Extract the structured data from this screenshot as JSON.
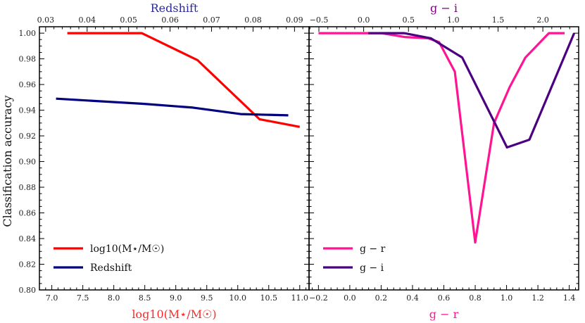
{
  "chart_data": [
    {
      "type": "line",
      "panel": "left",
      "ylabel": "Classification accuracy",
      "ylim": [
        0.8,
        1.005
      ],
      "yticks": [
        0.8,
        0.82,
        0.84,
        0.86,
        0.88,
        0.9,
        0.92,
        0.94,
        0.96,
        0.98,
        1.0
      ],
      "ytick_labels": [
        "0.80",
        "0.82",
        "0.84",
        "0.86",
        "0.88",
        "0.90",
        "0.92",
        "0.94",
        "0.96",
        "0.98",
        "1.00"
      ],
      "bottom_axis": {
        "label": "log10(M⋆/M☉)",
        "label_color": "#ff2a2a",
        "lim": [
          6.8,
          11.15
        ],
        "ticks": [
          7.0,
          7.5,
          8.0,
          8.5,
          9.0,
          9.5,
          10.0,
          10.5,
          11.0
        ],
        "tick_labels": [
          "7.0",
          "7.5",
          "8.0",
          "8.5",
          "9.0",
          "9.5",
          "10.0",
          "10.5",
          "11.0"
        ]
      },
      "top_axis": {
        "label": "Redshift",
        "label_color": "#2a2a9a",
        "lim": [
          0.0285,
          0.0935
        ],
        "ticks": [
          0.03,
          0.04,
          0.05,
          0.06,
          0.07,
          0.08,
          0.09
        ],
        "tick_labels": [
          "0.03",
          "0.04",
          "0.05",
          "0.06",
          "0.07",
          "0.08",
          "0.09"
        ]
      },
      "series": [
        {
          "name": "log10(M⋆/M☉)",
          "axis": "bottom",
          "color": "#ff0000",
          "x": [
            7.25,
            8.45,
            9.35,
            10.35,
            11.0
          ],
          "y": [
            1.0,
            1.0,
            0.979,
            0.933,
            0.927
          ]
        },
        {
          "name": "Redshift",
          "axis": "top",
          "color": "#00007f",
          "x": [
            0.0325,
            0.0535,
            0.0655,
            0.077,
            0.0885
          ],
          "y": [
            0.949,
            0.945,
            0.942,
            0.937,
            0.936
          ]
        }
      ],
      "legend": {
        "position": "lower-left"
      }
    },
    {
      "type": "line",
      "panel": "right",
      "ylim": [
        0.8,
        1.005
      ],
      "bottom_axis": {
        "label": "g − r",
        "label_color": "#ff1493",
        "lim": [
          -0.26,
          1.46
        ],
        "ticks": [
          -0.2,
          0.0,
          0.2,
          0.4,
          0.6,
          0.8,
          1.0,
          1.2,
          1.4
        ],
        "tick_labels": [
          "−0.2",
          "0.0",
          "0.2",
          "0.4",
          "0.6",
          "0.8",
          "1.0",
          "1.2",
          "1.4"
        ]
      },
      "top_axis": {
        "label": "g − i",
        "label_color": "#800080",
        "lim": [
          -0.61,
          2.4
        ],
        "ticks": [
          -0.5,
          0.0,
          0.5,
          1.0,
          1.5,
          2.0
        ],
        "tick_labels": [
          "−0.5",
          "0.0",
          "0.5",
          "1.0",
          "1.5",
          "2.0"
        ]
      },
      "series": [
        {
          "name": "g − r",
          "axis": "bottom",
          "color": "#ff1493",
          "x": [
            -0.2,
            0.2,
            0.35,
            0.5,
            0.57,
            0.67,
            0.8,
            0.92,
            1.02,
            1.12,
            1.27,
            1.37
          ],
          "y": [
            1.0,
            1.0,
            0.997,
            0.996,
            0.993,
            0.97,
            0.837,
            0.93,
            0.958,
            0.981,
            1.0,
            1.0
          ]
        },
        {
          "name": "g − i",
          "axis": "top",
          "color": "#4b0082",
          "x": [
            0.05,
            0.45,
            0.75,
            1.1,
            1.6,
            1.85,
            2.35
          ],
          "y": [
            1.0,
            1.0,
            0.996,
            0.981,
            0.911,
            0.917,
            1.0
          ]
        }
      ],
      "legend": {
        "position": "lower-left"
      }
    }
  ]
}
